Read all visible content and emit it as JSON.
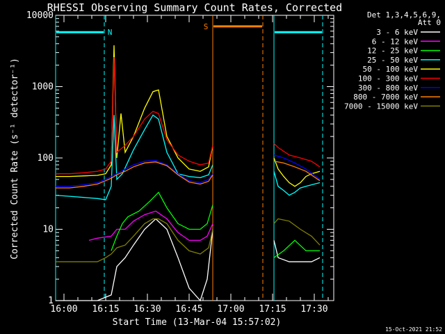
{
  "chart_data": {
    "type": "line",
    "title": "RHESSI Observing Summary Count Rates, Corrected",
    "xlabel": "Start Time (13-Mar-04 15:57:02)",
    "ylabel": "Corrected Count Rate (s⁻¹ detector⁻¹)",
    "yscale": "log",
    "ylim": [
      1,
      10000
    ],
    "xlim_minutes_after_1557": [
      0,
      100
    ],
    "x_ticks": [
      "16:00",
      "16:15",
      "16:30",
      "16:45",
      "17:00",
      "17:15",
      "17:30"
    ],
    "y_ticks": [
      "1",
      "10",
      "100",
      "1000",
      "10000"
    ],
    "legend_header": [
      "Det 1,3,4,5,6,9,",
      "Att 0"
    ],
    "legend_position": "top-right, outside plot",
    "footer_date": "15-Oct-2021 21:52",
    "flags": [
      {
        "label": "N",
        "color": "#00ffff",
        "segments": [
          [
            0,
            17.5
          ],
          [
            78.5,
            96
          ]
        ],
        "level": 5800
      },
      {
        "label": "S",
        "color": "#ff8000",
        "segments": [
          [
            56.5,
            74.5
          ]
        ],
        "level": 7000
      }
    ],
    "data_gap": [
      56.5,
      78.5
    ],
    "series": [
      {
        "name": "3 - 6 keV",
        "color": "#ffffff",
        "x": [
          0,
          10,
          15,
          20,
          22,
          25,
          28,
          32,
          36,
          40,
          44,
          48,
          52,
          54.5,
          56.5,
          78.5,
          80,
          84,
          88,
          92,
          95
        ],
        "y": [
          1.0,
          1.0,
          1.0,
          1.2,
          3,
          4,
          6,
          10,
          14,
          10,
          4,
          1.5,
          1.0,
          2,
          10,
          7,
          4,
          3.5,
          3.5,
          3.5,
          4
        ]
      },
      {
        "name": "6 - 12 keV",
        "color": "#ff00ff",
        "x": [
          12,
          15,
          20,
          22,
          25,
          28,
          32,
          36,
          40,
          44,
          48,
          52,
          54.5,
          56.5
        ],
        "y": [
          7,
          7.5,
          8,
          10,
          10,
          13,
          16,
          18,
          14,
          9,
          7,
          7,
          8,
          12
        ]
      },
      {
        "name": "12 - 25 keV",
        "color": "#00ff00",
        "x": [
          20,
          22,
          24,
          26,
          30,
          34,
          37,
          40,
          44,
          48,
          52,
          54.5,
          56.5,
          78.5,
          82,
          86,
          90,
          93,
          95
        ],
        "y": [
          5,
          8,
          12,
          15,
          18,
          25,
          33,
          20,
          12,
          10,
          10,
          12,
          22,
          4,
          5,
          7,
          5,
          5,
          5
        ]
      },
      {
        "name": "25 - 50 keV",
        "color": "#00ffff",
        "x": [
          0,
          5,
          10,
          15,
          18,
          20,
          21,
          22,
          24,
          28,
          32,
          35,
          37,
          40,
          44,
          48,
          52,
          55,
          56.5,
          78.5,
          80,
          82,
          84,
          86,
          88,
          90,
          92,
          95
        ],
        "y": [
          30,
          29,
          28,
          27,
          26,
          40,
          400,
          50,
          60,
          130,
          250,
          400,
          350,
          120,
          60,
          55,
          53,
          58,
          80,
          65,
          40,
          35,
          30,
          33,
          38,
          40,
          42,
          45
        ]
      },
      {
        "name": "50 - 100 keV",
        "color": "#ffff00",
        "x": [
          0,
          5,
          10,
          15,
          18,
          20,
          21,
          22,
          23.5,
          25,
          28,
          32,
          35,
          37,
          40,
          44,
          48,
          52,
          55,
          56.5,
          78.5,
          80,
          82,
          84,
          86,
          88,
          90,
          92,
          95
        ],
        "y": [
          55,
          55,
          56,
          57,
          60,
          80,
          3800,
          100,
          420,
          120,
          200,
          500,
          850,
          900,
          200,
          100,
          70,
          65,
          75,
          150,
          100,
          70,
          55,
          45,
          40,
          45,
          55,
          60,
          65
        ]
      },
      {
        "name": "100 - 300 keV",
        "color": "#ff0000",
        "x": [
          0,
          5,
          10,
          15,
          18,
          20,
          21,
          22,
          25,
          28,
          32,
          35,
          37,
          40,
          44,
          48,
          52,
          55,
          56.5,
          78.5,
          80,
          84,
          88,
          92,
          95
        ],
        "y": [
          60,
          60,
          62,
          65,
          70,
          90,
          2600,
          120,
          150,
          200,
          350,
          450,
          420,
          180,
          110,
          90,
          80,
          85,
          150,
          160,
          140,
          110,
          100,
          90,
          75
        ]
      },
      {
        "name": "300 - 800 keV",
        "color": "#0000ff",
        "x": [
          0,
          5,
          10,
          15,
          18,
          20,
          22,
          25,
          28,
          32,
          36,
          40,
          44,
          48,
          52,
          55,
          56.5,
          78.5,
          82,
          86,
          90,
          95
        ],
        "y": [
          40,
          40,
          42,
          45,
          50,
          55,
          60,
          70,
          80,
          90,
          92,
          80,
          60,
          48,
          45,
          50,
          60,
          110,
          100,
          85,
          70,
          50
        ]
      },
      {
        "name": "800 - 7000 keV",
        "color": "#ff8000",
        "x": [
          0,
          5,
          10,
          15,
          18,
          20,
          22,
          25,
          28,
          32,
          36,
          40,
          44,
          48,
          52,
          55,
          56.5,
          78.5,
          82,
          86,
          90,
          95
        ],
        "y": [
          38,
          38,
          40,
          43,
          48,
          52,
          58,
          65,
          75,
          85,
          88,
          78,
          58,
          46,
          43,
          47,
          58,
          90,
          85,
          75,
          65,
          48
        ]
      },
      {
        "name": "7000 - 15000 keV",
        "color": "#808000",
        "x": [
          0,
          5,
          10,
          15,
          18,
          20,
          22,
          25,
          28,
          32,
          35,
          37,
          40,
          44,
          48,
          52,
          55,
          56.5,
          78.5,
          80,
          84,
          88,
          92,
          95
        ],
        "y": [
          3.5,
          3.5,
          3.5,
          3.5,
          4,
          4.5,
          5.5,
          6,
          8,
          12,
          14,
          14,
          12,
          7,
          5,
          4.5,
          5.5,
          10,
          12,
          14,
          13,
          10,
          8,
          6
        ]
      }
    ]
  }
}
